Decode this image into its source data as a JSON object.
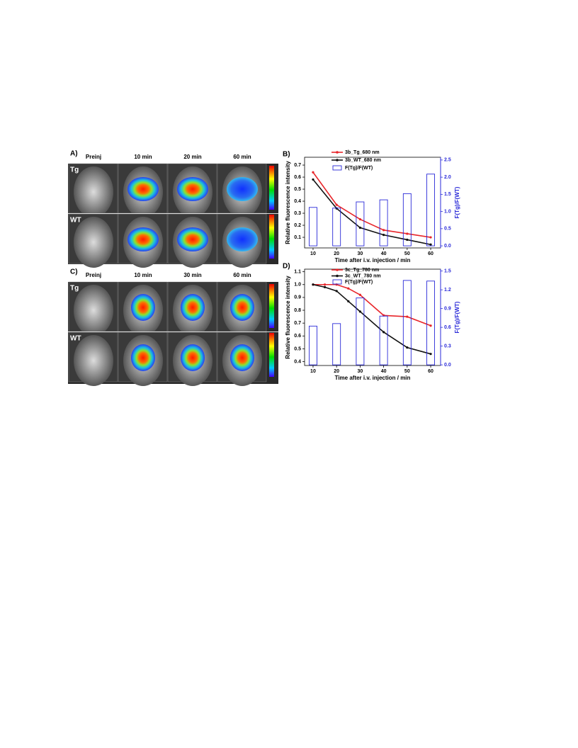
{
  "image_panels": [
    {
      "label": "A)",
      "columns": [
        "Preinj",
        "10 min",
        "20 min",
        "60 min"
      ],
      "rows": [
        "Tg",
        "WT"
      ]
    },
    {
      "label": "C)",
      "columns": [
        "Preinj",
        "10 min",
        "30 min",
        "60 min"
      ],
      "rows": [
        "Tg",
        "WT"
      ]
    }
  ],
  "chart_data": [
    {
      "type": "line",
      "label": "B)",
      "xlabel": "Time after i.v. injection / min",
      "ylabel": "Relative fluorescence intensity",
      "y2label": "F(Tg)/F(WT)",
      "x": [
        10,
        20,
        30,
        40,
        50,
        60
      ],
      "xlim": [
        6.4,
        64.2
      ],
      "xticks": [
        10,
        20,
        30,
        40,
        50,
        60
      ],
      "ylim": [
        0.012,
        0.765
      ],
      "yticks": [
        0.1,
        0.2,
        0.3,
        0.4,
        0.5,
        0.6,
        0.7
      ],
      "y2lim": [
        -0.06,
        2.58
      ],
      "y2ticks": [
        {
          "value": 0,
          "label": "0.0"
        },
        0.5,
        {
          "value": 1,
          "label": "1.0"
        },
        1.5,
        {
          "value": 2,
          "label": "2.0"
        },
        2.5
      ],
      "series": [
        {
          "name": "3b_Tg_680 nm",
          "color": "#e8262b",
          "values": [
            0.64,
            0.37,
            0.25,
            0.16,
            0.13,
            0.1
          ]
        },
        {
          "name": "3b_WT_680 nm",
          "color": "#111111",
          "values": [
            0.58,
            0.34,
            0.18,
            0.12,
            0.08,
            0.04
          ]
        },
        {
          "name": "F(Tg)/F(WT)",
          "color": "#2a2ad8",
          "axis": "y2",
          "values": [
            1.12,
            1.1,
            1.28,
            1.34,
            1.52,
            2.09
          ]
        }
      ]
    },
    {
      "type": "line",
      "label": "D)",
      "xlabel": "Time after i.v. injection / min",
      "ylabel": "Relative fluorescence intensity",
      "y2label": "F(Tg)/F(WT)",
      "x": [
        10,
        15,
        20,
        25,
        30,
        40,
        50,
        60
      ],
      "xlim": [
        6.4,
        64.2
      ],
      "xticks": [
        10,
        20,
        30,
        40,
        50,
        60
      ],
      "ylim": [
        0.37,
        1.12
      ],
      "yticks": [
        0.4,
        0.5,
        0.6,
        0.7,
        0.8,
        0.9,
        {
          "value": 1,
          "label": "1.0"
        },
        1.1
      ],
      "y2lim": [
        -0.01,
        1.53
      ],
      "y2ticks": [
        {
          "value": 0,
          "label": "0.0"
        },
        0.3,
        0.6,
        0.9,
        1.2,
        1.5
      ],
      "series": [
        {
          "name": "3c_Tg_780 nm",
          "color": "#e8262b",
          "values": [
            1.0,
            1.0,
            1.0,
            0.97,
            0.92,
            0.76,
            0.75,
            0.68
          ]
        },
        {
          "name": "3c_WT_780 nm",
          "color": "#111111",
          "values": [
            1.0,
            0.98,
            0.95,
            0.87,
            0.79,
            0.63,
            0.51,
            0.46
          ]
        },
        {
          "name": "F(Tg)/F(WT)",
          "color": "#2a2ad8",
          "axis": "y2",
          "values": [
            0.62,
            null,
            0.66,
            null,
            1.07,
            0.78,
            1.35,
            1.34
          ]
        }
      ]
    }
  ]
}
